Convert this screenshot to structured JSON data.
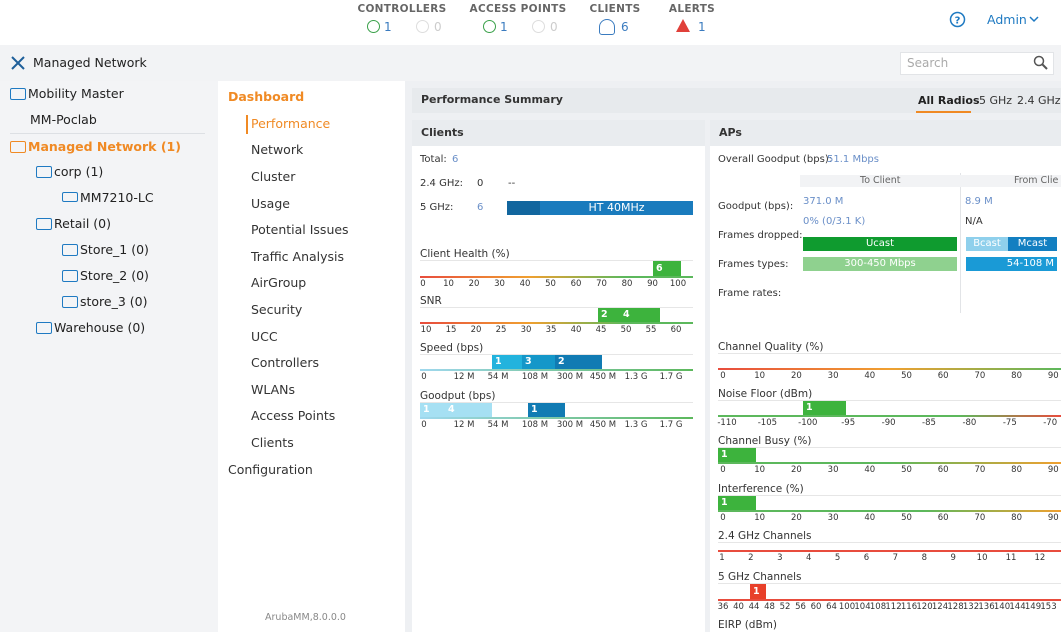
{
  "topbar": {
    "stats": [
      {
        "label": "CONTROLLERS",
        "up": "1",
        "down": "0"
      },
      {
        "label": "ACCESS POINTS",
        "up": "1",
        "down": "0"
      },
      {
        "label": "CLIENTS",
        "count": "6"
      },
      {
        "label": "ALERTS",
        "count": "1"
      }
    ],
    "user": "Admin"
  },
  "sidebar": {
    "title": "Managed Network",
    "search": "Search",
    "tree": [
      "Mobility Master",
      "MM-Poclab",
      "Managed Network (1)",
      "corp (1)",
      "MM7210-LC",
      "Retail (0)",
      "Store_1 (0)",
      "Store_2 (0)",
      "store_3 (0)",
      "Warehouse (0)"
    ]
  },
  "nav": {
    "items": [
      "Dashboard",
      "Performance",
      "Network",
      "Cluster",
      "Usage",
      "Potential Issues",
      "Traffic Analysis",
      "AirGroup",
      "Security",
      "UCC",
      "Controllers",
      "WLANs",
      "Access Points",
      "Clients",
      "Configuration"
    ],
    "footer": "ArubaMM,8.0.0.0"
  },
  "summary": {
    "title": "Performance Summary",
    "tabs": [
      "All Radios",
      "5 GHz",
      "2.4 GHz"
    ]
  },
  "clients": {
    "title": "Clients",
    "total": {
      "label": "Total:",
      "value": "6"
    },
    "band24": {
      "label": "2.4 GHz:",
      "value": "0",
      "extra": "--"
    },
    "band5": {
      "label": "5 GHz:",
      "value": "6",
      "bar": "HT 40MHz"
    },
    "gauges": [
      {
        "title": "Client Health (%)",
        "ticks": [
          "0",
          "10",
          "20",
          "30",
          "40",
          "50",
          "60",
          "70",
          "80",
          "90",
          "100"
        ],
        "segments": [
          {
            "label": "6",
            "color": "#3db33d"
          }
        ]
      },
      {
        "title": "SNR",
        "ticks": [
          "10",
          "15",
          "20",
          "25",
          "30",
          "35",
          "40",
          "45",
          "50",
          "55",
          "60"
        ],
        "segments": [
          {
            "label": "2",
            "color": "#3db33d"
          },
          {
            "label": "4",
            "color": "#3db33d"
          }
        ]
      },
      {
        "title": "Speed (bps)",
        "ticks": [
          "0",
          "12 M",
          "54 M",
          "108 M",
          "300 M",
          "450 M",
          "1.3 G",
          "1.7 G"
        ],
        "segments": [
          {
            "label": "1",
            "color": "#22b3dd"
          },
          {
            "label": "3",
            "color": "#1497c9"
          },
          {
            "label": "2",
            "color": "#117bb3"
          }
        ]
      },
      {
        "title": "Goodput (bps)",
        "ticks": [
          "0",
          "12 M",
          "54 M",
          "108 M",
          "300 M",
          "450 M",
          "1.3 G",
          "1.7 G"
        ],
        "segments": [
          {
            "label": "1",
            "color": "#a6e0f3"
          },
          {
            "label": "4",
            "color": "#a6e0f3"
          },
          {
            "label": "1",
            "color": "#117bb3"
          }
        ]
      }
    ]
  },
  "aps": {
    "title": "APs",
    "overall": {
      "label": "Overall Goodput (bps):",
      "value": "51.1 Mbps"
    },
    "columns": [
      "To Client",
      "From Clie"
    ],
    "goodput": {
      "label": "Goodput (bps):",
      "values": [
        "371.0 M",
        "8.9 M"
      ]
    },
    "drop_rate": [
      "0% (0/3.1 K)",
      "N/A"
    ],
    "frames_dropped": {
      "label": "Frames dropped:",
      "to_client": [
        "Ucast"
      ],
      "from_client": [
        "Bcast",
        "Mcast"
      ]
    },
    "frame_types": {
      "label": "Frames types:",
      "to_client": [
        "300-450 Mbps"
      ],
      "from_client": [
        "54-108 M"
      ]
    },
    "frame_rates": "Frame rates:",
    "gauges": [
      {
        "title": "Channel Quality (%)",
        "ticks": [
          "0",
          "10",
          "20",
          "30",
          "40",
          "50",
          "60",
          "70",
          "80",
          "90"
        ],
        "segments": []
      },
      {
        "title": "Noise Floor (dBm)",
        "ticks": [
          "-110",
          "-105",
          "-100",
          "-95",
          "-90",
          "-85",
          "-80",
          "-75",
          "-70"
        ],
        "segments": [
          {
            "label": "1",
            "color": "#3db33d"
          }
        ]
      },
      {
        "title": "Channel Busy (%)",
        "ticks": [
          "0",
          "10",
          "20",
          "30",
          "40",
          "50",
          "60",
          "70",
          "80",
          "90"
        ],
        "segments": [
          {
            "label": "1",
            "color": "#3db33d"
          }
        ]
      },
      {
        "title": "Interference (%)",
        "ticks": [
          "0",
          "10",
          "20",
          "30",
          "40",
          "50",
          "60",
          "70",
          "80",
          "90"
        ],
        "segments": [
          {
            "label": "1",
            "color": "#3db33d"
          }
        ]
      },
      {
        "title": "2.4 GHz Channels",
        "ticks": [
          "1",
          "2",
          "3",
          "4",
          "5",
          "6",
          "7",
          "8",
          "9",
          "10",
          "11",
          "12"
        ],
        "segments": []
      },
      {
        "title": "5 GHz Channels",
        "ticks": [
          "36",
          "40",
          "44",
          "48",
          "52",
          "56",
          "60",
          "64",
          "100",
          "104",
          "108",
          "112",
          "116",
          "120",
          "124",
          "128",
          "132",
          "136",
          "140",
          "144",
          "149",
          "153"
        ],
        "segments": [
          {
            "label": "1",
            "color": "#e8402a"
          }
        ]
      }
    ],
    "cut": "EIRP (dBm)"
  }
}
